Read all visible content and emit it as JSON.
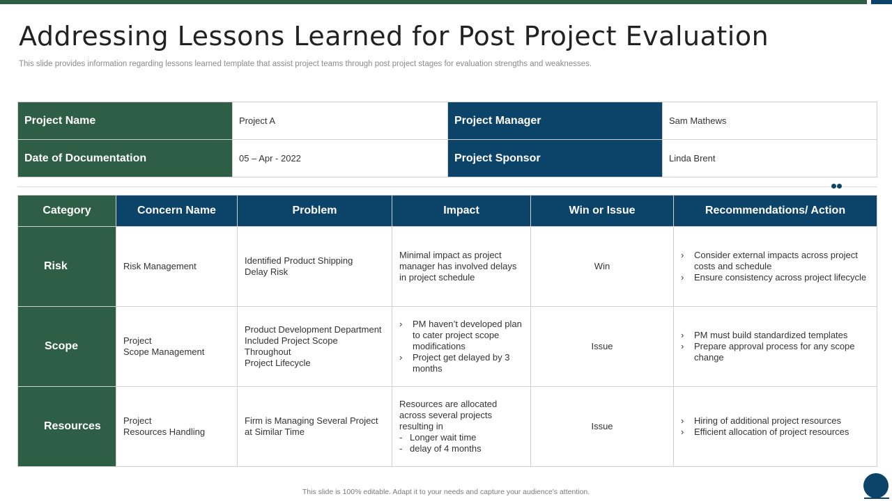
{
  "page": {
    "title": "Addressing Lessons Learned for Post Project Evaluation",
    "subtitle": "This slide provides information regarding lessons learned template that assist project teams through post project stages for evaluation strengths and weaknesses.",
    "footer": "This slide is 100% editable.  Adapt it to your needs and capture your audience's attention."
  },
  "colors": {
    "green": "#2e5e45",
    "navy": "#0b4468"
  },
  "info": {
    "project_name_label": "Project Name",
    "project_name_value": "Project A",
    "project_manager_label": "Project Manager",
    "project_manager_value": "Sam Mathews",
    "date_label": "Date of Documentation",
    "date_value": "05 – Apr - 2022",
    "sponsor_label": "Project Sponsor",
    "sponsor_value": "Linda Brent"
  },
  "table": {
    "headers": [
      "Category",
      "Concern Name",
      "Problem",
      "Impact",
      "Win or Issue",
      "Recommendations/ Action"
    ],
    "rows": [
      {
        "category": "Risk",
        "concern": "Risk Management",
        "problem": "Identified Product Shipping\n Delay Risk",
        "impact_text": "Minimal impact as project\nmanager has involved  delays\nin project schedule",
        "win_issue": "Win",
        "actions": [
          "Consider external impacts across project costs and schedule",
          "Ensure consistency across project lifecycle"
        ]
      },
      {
        "category": "Scope",
        "concern": "Project\nScope Management",
        "problem": "Product Development  Department\nIncluded Project Scope\nThroughout\nProject Lifecycle",
        "impact_bullets": [
          "PM haven’t developed plan to cater project scope modifications",
          "Project get delayed by 3 months"
        ],
        "win_issue": "Issue",
        "actions": [
          "PM must build standardized templates",
          "Prepare approval process for any scope change"
        ]
      },
      {
        "category": "Resources",
        "concern": "Project\nResources Handling",
        "problem": "Firm is Managing Several Project\nat Similar Time",
        "impact_text": "Resources are allocated\nacross several projects\nresulting in",
        "impact_dashes": [
          "Longer wait time",
          "delay of 4 months"
        ],
        "win_issue": "Issue",
        "actions": [
          "Hiring of additional project resources",
          "Efficient allocation of project resources"
        ]
      }
    ]
  }
}
